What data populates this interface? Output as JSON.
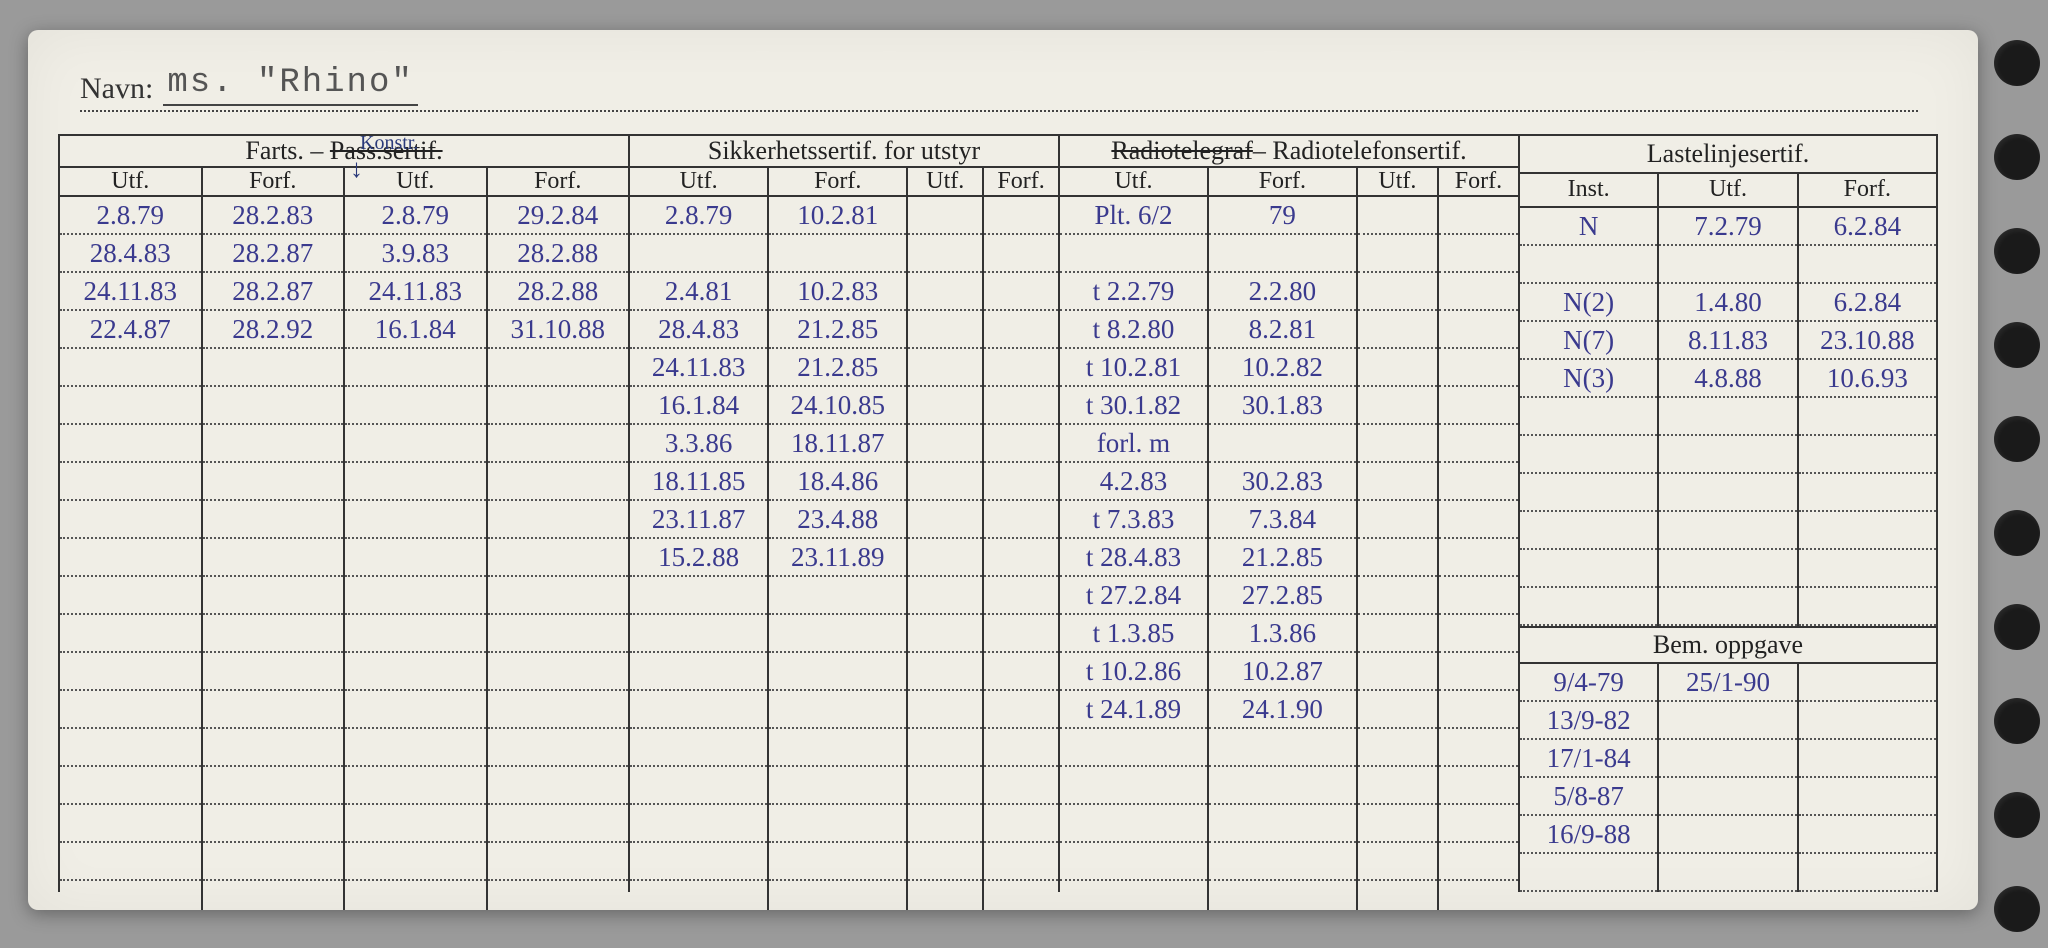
{
  "navn_label": "Navn:",
  "navn_value": "ms. \"Rhino\"",
  "sections": {
    "farts": {
      "title_a": "Farts. –",
      "title_b": "Pass.sertif.",
      "annot": "Konstr.",
      "subs": [
        "Utf.",
        "Forf.",
        "Utf.",
        "Forf."
      ],
      "cols": [
        [
          "2.8.79",
          "28.4.83",
          "24.11.83",
          "22.4.87"
        ],
        [
          "28.2.83",
          "28.2.87",
          "28.2.87",
          "28.2.92"
        ],
        [
          "2.8.79",
          "3.9.83",
          "24.11.83",
          "16.1.84"
        ],
        [
          "29.2.84",
          "28.2.88",
          "28.2.88",
          "31.10.88"
        ]
      ]
    },
    "sikkerhet": {
      "title": "Sikkerhetssertif. for utstyr",
      "subs": [
        "Utf.",
        "Forf.",
        "Utf.",
        "Forf."
      ],
      "cols": [
        [
          "2.8.79",
          "",
          "2.4.81",
          "28.4.83",
          "24.11.83",
          "16.1.84",
          "3.3.86",
          "18.11.85",
          "23.11.87",
          "15.2.88"
        ],
        [
          "10.2.81",
          "",
          "10.2.83",
          "21.2.85",
          "21.2.85",
          "24.10.85",
          "18.11.87",
          "18.4.86",
          "23.4.88",
          "23.11.89"
        ],
        [],
        []
      ]
    },
    "radio": {
      "title_a": "Radiotelegraf",
      "title_b": " – Radiotelefonsertif.",
      "subs": [
        "Utf.",
        "Forf.",
        "Utf.",
        "Forf."
      ],
      "cols": [
        [
          "Plt. 6/2",
          "",
          "t 2.2.79",
          "t 8.2.80",
          "t 10.2.81",
          "t 30.1.82",
          "forl. m",
          "4.2.83",
          "t 7.3.83",
          "t 28.4.83",
          "t 27.2.84",
          "t 1.3.85",
          "t 10.2.86",
          "t 24.1.89"
        ],
        [
          "79",
          "",
          "2.2.80",
          "8.2.81",
          "10.2.82",
          "30.1.83",
          "",
          "30.2.83",
          "7.3.84",
          "21.2.85",
          "27.2.85",
          "1.3.86",
          "10.2.87",
          "24.1.90"
        ],
        [],
        []
      ]
    },
    "laste": {
      "title": "Lastelinjesertif.",
      "subs": [
        "Inst.",
        "Utf.",
        "Forf."
      ],
      "cols": [
        [
          "N",
          "",
          "N(2)",
          "N(7)",
          "N(3)"
        ],
        [
          "7.2.79",
          "",
          "1.4.80",
          "8.11.83",
          "4.8.88"
        ],
        [
          "6.2.84",
          "",
          "6.2.84",
          "23.10.88",
          "10.6.93"
        ]
      ],
      "bem_title": "Bem. oppgave",
      "bem_cols": [
        [
          "9/4-79",
          "13/9-82",
          "17/1-84",
          "5/8-87",
          "16/9-88"
        ],
        [
          "25/1-90"
        ],
        []
      ]
    }
  },
  "row_count": 20,
  "colors": {
    "card_bg": "#f0eee6",
    "ink_blue": "#3a3a8e",
    "ink_dark": "#333333",
    "line": "#333333",
    "dot": "#555555"
  }
}
